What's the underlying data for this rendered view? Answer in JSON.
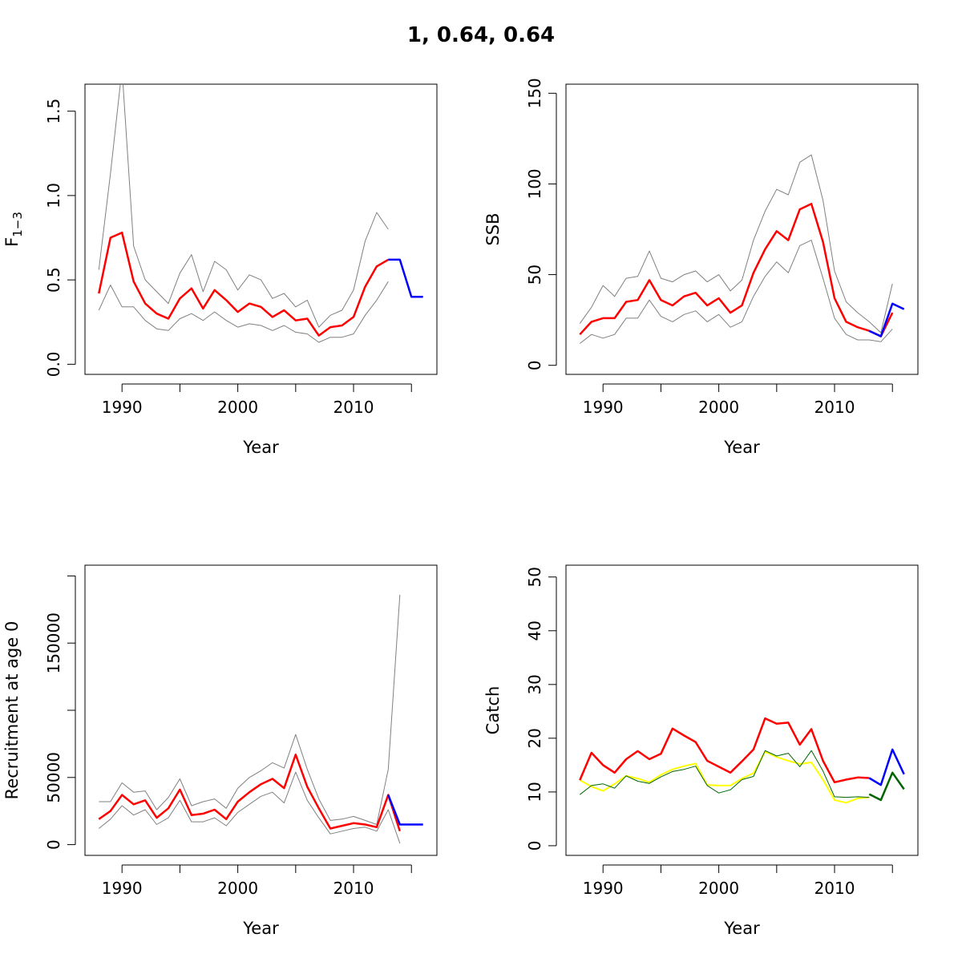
{
  "figure": {
    "title": "1, 0.64, 0.64"
  },
  "colors": {
    "estimate": "#ff0000",
    "bounds": "#808080",
    "forecast": "#0000ff",
    "catch_observed": "#ffff00",
    "catch_forecast_green": "#006400",
    "axis": "#000000"
  },
  "chart_data": [
    {
      "id": "F",
      "type": "line",
      "title": "",
      "xlabel": "Year",
      "ylabel_main": "F",
      "ylabel_sub": "1−3",
      "xlim": [
        1986.8,
        2017.2
      ],
      "ylim": [
        -0.06,
        1.66
      ],
      "xticks": [
        1990,
        1995,
        2000,
        2005,
        2010,
        2015
      ],
      "xtick_labels": [
        "1990",
        "",
        "2000",
        "",
        "2010",
        ""
      ],
      "yticks": [
        0,
        0.5,
        1,
        1.5
      ],
      "ytick_labels": [
        "0.0",
        "0.5",
        "1.0",
        "1.5"
      ],
      "series": [
        {
          "role": "upper",
          "color": "#808080",
          "x": [
            1988,
            1989,
            1990,
            1991,
            1992,
            1993,
            1994,
            1995,
            1996,
            1997,
            1998,
            1999,
            2000,
            2001,
            2002,
            2003,
            2004,
            2005,
            2006,
            2007,
            2008,
            2009,
            2010,
            2011,
            2012,
            2013
          ],
          "y": [
            0.56,
            1.13,
            1.75,
            0.7,
            0.5,
            0.43,
            0.36,
            0.54,
            0.65,
            0.43,
            0.61,
            0.56,
            0.44,
            0.53,
            0.5,
            0.39,
            0.42,
            0.34,
            0.38,
            0.22,
            0.29,
            0.32,
            0.44,
            0.73,
            0.9,
            0.8
          ]
        },
        {
          "role": "lower",
          "color": "#808080",
          "x": [
            1988,
            1989,
            1990,
            1991,
            1992,
            1993,
            1994,
            1995,
            1996,
            1997,
            1998,
            1999,
            2000,
            2001,
            2002,
            2003,
            2004,
            2005,
            2006,
            2007,
            2008,
            2009,
            2010,
            2011,
            2012,
            2013
          ],
          "y": [
            0.32,
            0.47,
            0.34,
            0.34,
            0.26,
            0.21,
            0.2,
            0.27,
            0.3,
            0.26,
            0.31,
            0.26,
            0.22,
            0.24,
            0.23,
            0.2,
            0.23,
            0.19,
            0.18,
            0.13,
            0.16,
            0.16,
            0.18,
            0.29,
            0.38,
            0.49
          ]
        },
        {
          "role": "estimate",
          "color": "#ff0000",
          "x": [
            1988,
            1989,
            1990,
            1991,
            1992,
            1993,
            1994,
            1995,
            1996,
            1997,
            1998,
            1999,
            2000,
            2001,
            2002,
            2003,
            2004,
            2005,
            2006,
            2007,
            2008,
            2009,
            2010,
            2011,
            2012,
            2013
          ],
          "y": [
            0.42,
            0.75,
            0.78,
            0.49,
            0.36,
            0.3,
            0.27,
            0.39,
            0.45,
            0.33,
            0.44,
            0.38,
            0.31,
            0.36,
            0.34,
            0.28,
            0.32,
            0.26,
            0.27,
            0.17,
            0.22,
            0.23,
            0.28,
            0.46,
            0.58,
            0.62
          ]
        },
        {
          "role": "forecast",
          "color": "#0000ff",
          "x": [
            2013,
            2014,
            2015,
            2016
          ],
          "y": [
            0.62,
            0.62,
            0.4,
            0.4
          ]
        }
      ]
    },
    {
      "id": "SSB",
      "type": "line",
      "title": "",
      "xlabel": "Year",
      "ylabel": "SSB",
      "xlim": [
        1986.8,
        2017.2
      ],
      "ylim": [
        -5,
        155
      ],
      "xticks": [
        1990,
        1995,
        2000,
        2005,
        2010,
        2015
      ],
      "xtick_labels": [
        "1990",
        "",
        "2000",
        "",
        "2010",
        ""
      ],
      "yticks": [
        0,
        50,
        100,
        150
      ],
      "ytick_labels": [
        "0",
        "50",
        "100",
        "150"
      ],
      "series": [
        {
          "role": "upper",
          "color": "#808080",
          "x": [
            1988,
            1989,
            1990,
            1991,
            1992,
            1993,
            1994,
            1995,
            1996,
            1997,
            1998,
            1999,
            2000,
            2001,
            2002,
            2003,
            2004,
            2005,
            2006,
            2007,
            2008,
            2009,
            2010,
            2011,
            2012,
            2013,
            2014,
            2015
          ],
          "y": [
            23,
            32,
            44,
            38,
            48,
            49,
            63,
            48,
            46,
            50,
            52,
            46,
            50,
            41,
            47,
            69,
            85,
            97,
            94,
            112,
            116,
            91,
            52,
            35,
            29,
            24,
            18,
            45
          ]
        },
        {
          "role": "lower",
          "color": "#808080",
          "x": [
            1988,
            1989,
            1990,
            1991,
            1992,
            1993,
            1994,
            1995,
            1996,
            1997,
            1998,
            1999,
            2000,
            2001,
            2002,
            2003,
            2004,
            2005,
            2006,
            2007,
            2008,
            2009,
            2010,
            2011,
            2012,
            2013,
            2014,
            2015
          ],
          "y": [
            12,
            17,
            15,
            17,
            26,
            26,
            36,
            27,
            24,
            28,
            30,
            24,
            28,
            21,
            24,
            38,
            49,
            57,
            51,
            66,
            69,
            48,
            26,
            17,
            14,
            14,
            13,
            20
          ]
        },
        {
          "role": "estimate",
          "color": "#ff0000",
          "x": [
            1988,
            1989,
            1990,
            1991,
            1992,
            1993,
            1994,
            1995,
            1996,
            1997,
            1998,
            1999,
            2000,
            2001,
            2002,
            2003,
            2004,
            2005,
            2006,
            2007,
            2008,
            2009,
            2010,
            2011,
            2012,
            2013,
            2014,
            2015
          ],
          "y": [
            17,
            24,
            26,
            26,
            35,
            36,
            47,
            36,
            33,
            38,
            40,
            33,
            37,
            29,
            33,
            51,
            64,
            74,
            69,
            86,
            89,
            68,
            37,
            24,
            21,
            19,
            16,
            29
          ]
        },
        {
          "role": "forecast",
          "color": "#0000ff",
          "x": [
            2013,
            2014,
            2015,
            2016
          ],
          "y": [
            19,
            16,
            34,
            31
          ]
        }
      ]
    },
    {
      "id": "Recruitment",
      "type": "line",
      "title": "",
      "xlabel": "Year",
      "ylabel": "Recruitment at age 0",
      "xlim": [
        1986.8,
        2017.2
      ],
      "ylim": [
        -8000,
        208000
      ],
      "xticks": [
        1990,
        1995,
        2000,
        2005,
        2010,
        2015
      ],
      "xtick_labels": [
        "1990",
        "",
        "2000",
        "",
        "2010",
        ""
      ],
      "yticks": [
        0,
        50000,
        100000,
        150000,
        200000
      ],
      "ytick_labels": [
        "0",
        "50000",
        "",
        "150000",
        ""
      ],
      "series": [
        {
          "role": "upper",
          "color": "#808080",
          "x": [
            1988,
            1989,
            1990,
            1991,
            1992,
            1993,
            1994,
            1995,
            1996,
            1997,
            1998,
            1999,
            2000,
            2001,
            2002,
            2003,
            2004,
            2005,
            2006,
            2007,
            2008,
            2009,
            2010,
            2011,
            2012,
            2013,
            2014
          ],
          "y": [
            32000,
            32000,
            46000,
            39000,
            40000,
            26000,
            35000,
            49000,
            29000,
            32000,
            34000,
            27000,
            42000,
            50000,
            55000,
            61000,
            57000,
            82000,
            56000,
            34000,
            18000,
            19000,
            21000,
            18000,
            15000,
            56000,
            186000
          ]
        },
        {
          "role": "lower",
          "color": "#808080",
          "x": [
            1988,
            1989,
            1990,
            1991,
            1992,
            1993,
            1994,
            1995,
            1996,
            1997,
            1998,
            1999,
            2000,
            2001,
            2002,
            2003,
            2004,
            2005,
            2006,
            2007,
            2008,
            2009,
            2010,
            2011,
            2012,
            2013,
            2014
          ],
          "y": [
            12000,
            19000,
            29000,
            22000,
            26000,
            15000,
            20000,
            33000,
            17000,
            17000,
            20000,
            14000,
            24000,
            30000,
            36000,
            39000,
            31000,
            54000,
            33000,
            20000,
            8000,
            10000,
            12000,
            13000,
            10000,
            26000,
            1000
          ]
        },
        {
          "role": "estimate",
          "color": "#ff0000",
          "x": [
            1988,
            1989,
            1990,
            1991,
            1992,
            1993,
            1994,
            1995,
            1996,
            1997,
            1998,
            1999,
            2000,
            2001,
            2002,
            2003,
            2004,
            2005,
            2006,
            2007,
            2008,
            2009,
            2010,
            2011,
            2012,
            2013,
            2014
          ],
          "y": [
            19000,
            25000,
            37000,
            30000,
            33000,
            20000,
            27000,
            41000,
            22000,
            23000,
            26000,
            19000,
            32000,
            39000,
            45000,
            49000,
            42000,
            67000,
            43000,
            27000,
            12000,
            14000,
            16000,
            15000,
            13000,
            37000,
            10000
          ]
        },
        {
          "role": "forecast",
          "color": "#0000ff",
          "x": [
            2013,
            2014,
            2015,
            2016
          ],
          "y": [
            37000,
            15000,
            15000,
            15000
          ]
        }
      ]
    },
    {
      "id": "Catch",
      "type": "line",
      "title": "",
      "xlabel": "Year",
      "ylabel": "Catch",
      "xlim": [
        1986.8,
        2017.2
      ],
      "ylim": [
        -1.8,
        52.2
      ],
      "xticks": [
        1990,
        1995,
        2000,
        2005,
        2010,
        2015
      ],
      "xtick_labels": [
        "1990",
        "",
        "2000",
        "",
        "2010",
        ""
      ],
      "yticks": [
        0,
        10,
        20,
        30,
        40,
        50
      ],
      "ytick_labels": [
        "0",
        "10",
        "20",
        "30",
        "40",
        "50"
      ],
      "series": [
        {
          "role": "observed",
          "color": "#ffff00",
          "x": [
            1988,
            1989,
            1990,
            1991,
            1992,
            1993,
            1994,
            1995,
            1996,
            1997,
            1998,
            1999,
            2000,
            2001,
            2002,
            2003,
            2004,
            2005,
            2006,
            2007,
            2008,
            2009,
            2010,
            2011,
            2012,
            2013
          ],
          "y": [
            12.2,
            11.0,
            10.2,
            11.5,
            13.0,
            12.5,
            11.8,
            13.2,
            14.2,
            14.8,
            15.3,
            11.3,
            11.2,
            11.2,
            12.5,
            13.5,
            17.5,
            16.5,
            15.8,
            15.2,
            15.5,
            12.3,
            8.5,
            8.0,
            8.8,
            9.0
          ]
        },
        {
          "role": "fitted",
          "color": "#006400",
          "x": [
            1988,
            1989,
            1990,
            1991,
            1992,
            1993,
            1994,
            1995,
            1996,
            1997,
            1998,
            1999,
            2000,
            2001,
            2002,
            2003,
            2004,
            2005,
            2006,
            2007,
            2008,
            2009,
            2010,
            2011,
            2012,
            2013
          ],
          "y": [
            9.5,
            11.2,
            11.5,
            10.7,
            13.0,
            12.0,
            11.6,
            12.8,
            13.8,
            14.2,
            14.8,
            11.2,
            9.8,
            10.4,
            12.3,
            12.9,
            17.7,
            16.7,
            17.2,
            14.7,
            17.7,
            13.9,
            9.1,
            9.0,
            9.1,
            9.0
          ]
        },
        {
          "role": "estimate",
          "color": "#ff0000",
          "x": [
            1988,
            1989,
            1990,
            1991,
            1992,
            1993,
            1994,
            1995,
            1996,
            1997,
            1998,
            1999,
            2000,
            2001,
            2002,
            2003,
            2004,
            2005,
            2006,
            2007,
            2008,
            2009,
            2010,
            2011,
            2012,
            2013
          ],
          "y": [
            12.2,
            17.3,
            15.0,
            13.6,
            16.1,
            17.6,
            16.1,
            17.1,
            21.8,
            20.5,
            19.3,
            15.8,
            14.7,
            13.6,
            15.7,
            17.9,
            23.7,
            22.7,
            22.9,
            18.8,
            21.7,
            15.8,
            11.8,
            12.3,
            12.7,
            12.6
          ]
        },
        {
          "role": "forecast",
          "color": "#0000ff",
          "x": [
            2013,
            2014,
            2015,
            2016
          ],
          "y": [
            12.6,
            11.3,
            17.9,
            13.3
          ]
        },
        {
          "role": "forecast_green",
          "color": "#006400",
          "x": [
            2013,
            2014,
            2015,
            2016
          ],
          "y": [
            9.6,
            8.5,
            13.6,
            10.5
          ]
        }
      ]
    }
  ]
}
